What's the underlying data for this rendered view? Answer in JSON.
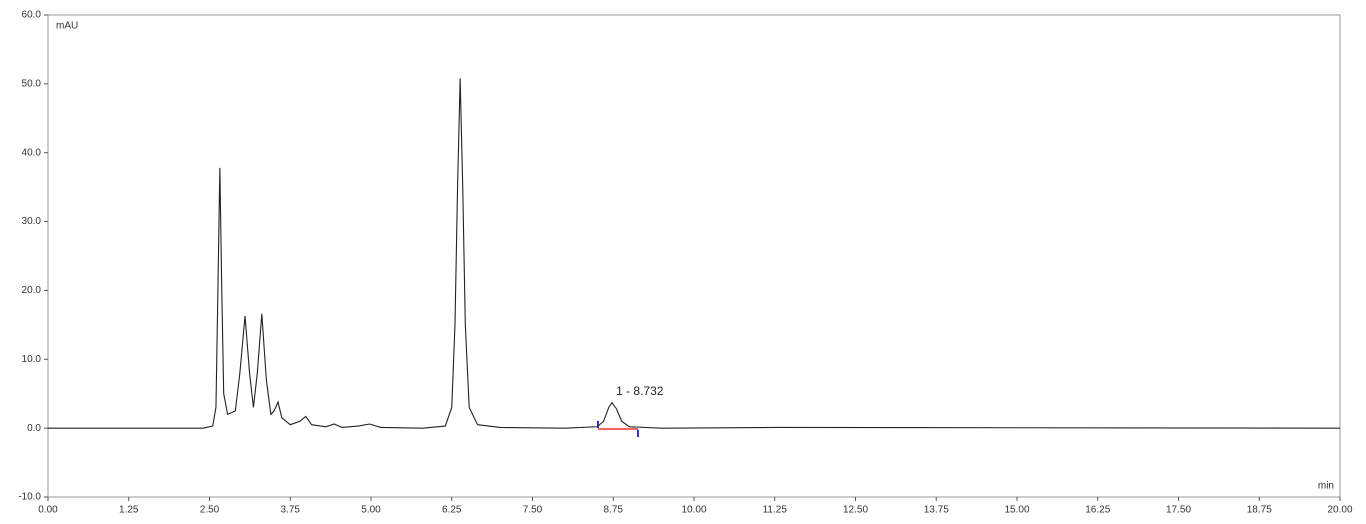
{
  "chart_data": {
    "type": "line",
    "x_label": "min",
    "y_label": "mAU",
    "annotation": "1 - 8.732",
    "annotation_x": 8.732,
    "xlim": [
      0,
      20
    ],
    "ylim": [
      -10,
      60
    ],
    "xticks": [
      {
        "value": 0,
        "label": "0.00"
      },
      {
        "value": 1.25,
        "label": "1.25"
      },
      {
        "value": 2.5,
        "label": "2.50"
      },
      {
        "value": 3.75,
        "label": "3.75"
      },
      {
        "value": 5,
        "label": "5.00"
      },
      {
        "value": 6.25,
        "label": "6.25"
      },
      {
        "value": 7.5,
        "label": "7.50"
      },
      {
        "value": 8.75,
        "label": "8.75"
      },
      {
        "value": 10,
        "label": "10.00"
      },
      {
        "value": 11.25,
        "label": "11.25"
      },
      {
        "value": 12.5,
        "label": "12.50"
      },
      {
        "value": 13.75,
        "label": "13.75"
      },
      {
        "value": 15,
        "label": "15.00"
      },
      {
        "value": 16.25,
        "label": "16.25"
      },
      {
        "value": 17.5,
        "label": "17.50"
      },
      {
        "value": 18.75,
        "label": "18.75"
      },
      {
        "value": 20,
        "label": "20.00"
      }
    ],
    "yticks": [
      {
        "value": -10,
        "label": "-10.0"
      },
      {
        "value": 0,
        "label": "0.0"
      },
      {
        "value": 10,
        "label": "10.0"
      },
      {
        "value": 20,
        "label": "20.0"
      },
      {
        "value": 30,
        "label": "30.0"
      },
      {
        "value": 40,
        "label": "40.0"
      },
      {
        "value": 50,
        "label": "50.0"
      },
      {
        "value": 60,
        "label": "60.0"
      }
    ],
    "series": [
      {
        "color": "#222222",
        "x": [
          0,
          2.4,
          2.55,
          2.6,
          2.63,
          2.66,
          2.69,
          2.72,
          2.78,
          2.9,
          2.97,
          3.05,
          3.12,
          3.18,
          3.24,
          3.31,
          3.38,
          3.45,
          3.5,
          3.56,
          3.62,
          3.75,
          3.9,
          3.99,
          4.08,
          4.3,
          4.43,
          4.55,
          4.8,
          4.98,
          5.15,
          5.8,
          6.15,
          6.25,
          6.3,
          6.34,
          6.38,
          6.42,
          6.46,
          6.52,
          6.65,
          7,
          8,
          8.5,
          8.6,
          8.68,
          8.73,
          8.8,
          8.88,
          9,
          9.5,
          11.3,
          20
        ],
        "values": [
          0,
          0,
          0.3,
          3,
          20,
          37.8,
          20,
          5,
          2,
          2.5,
          8,
          16.3,
          8,
          3,
          8,
          16.6,
          7,
          2,
          2.5,
          3.8,
          1.5,
          0.5,
          1,
          1.7,
          0.5,
          0.2,
          0.6,
          0.1,
          0.3,
          0.6,
          0.1,
          0,
          0.3,
          3,
          15,
          35,
          50.8,
          35,
          15,
          3,
          0.5,
          0.1,
          0,
          0.2,
          1,
          3,
          3.7,
          2.8,
          1,
          0.2,
          0,
          0.1,
          0
        ]
      }
    ]
  }
}
